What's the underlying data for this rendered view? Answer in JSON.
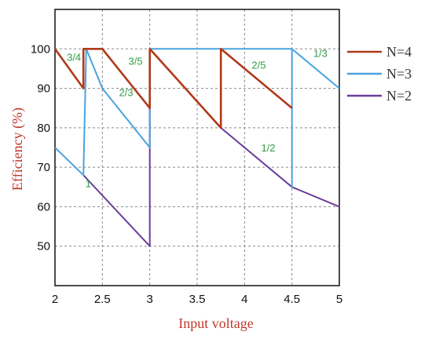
{
  "chart_data": {
    "type": "line",
    "title": "",
    "xlabel": "Input voltage",
    "ylabel": "Efficiency (%)",
    "xlim": [
      2,
      5
    ],
    "ylim": [
      40,
      110
    ],
    "xticks": [
      "2",
      "2.5",
      "3",
      "3.5",
      "4",
      "4.5",
      "5"
    ],
    "yticks": [
      "50",
      "60",
      "70",
      "80",
      "90",
      "100"
    ],
    "grid": true,
    "legend_placement": "right",
    "series": [
      {
        "name": "N=4",
        "color": "#b03a1a",
        "points": [
          [
            2,
            100
          ],
          [
            2.3,
            90
          ],
          [
            2.3,
            100
          ],
          [
            2.5,
            100
          ],
          [
            2.5,
            100
          ],
          [
            3,
            85
          ],
          [
            3,
            100
          ],
          [
            3.75,
            80
          ],
          [
            3.75,
            100
          ],
          [
            4.5,
            85
          ]
        ]
      },
      {
        "name": "N=3",
        "color": "#4aa3df",
        "points": [
          [
            2,
            75
          ],
          [
            2.3,
            68
          ],
          [
            2.33,
            100
          ],
          [
            2.5,
            90
          ],
          [
            3,
            75
          ],
          [
            3,
            100
          ],
          [
            4.5,
            100
          ],
          [
            4.5,
            65
          ],
          [
            4.5,
            100
          ],
          [
            5,
            90
          ]
        ]
      },
      {
        "name": "N=2",
        "color": "#6a3d9a",
        "points": [
          [
            2.3,
            68
          ],
          [
            3,
            50
          ],
          [
            3,
            100
          ],
          [
            3.75,
            80
          ],
          [
            4.5,
            65
          ],
          [
            5,
            60
          ]
        ]
      }
    ],
    "annotations": [
      {
        "text": "3/4",
        "x": 2.2,
        "y": 97
      },
      {
        "text": "3/5",
        "x": 2.85,
        "y": 96
      },
      {
        "text": "2/3",
        "x": 2.75,
        "y": 88
      },
      {
        "text": "2/5",
        "x": 4.15,
        "y": 95
      },
      {
        "text": "1/3",
        "x": 4.8,
        "y": 98
      },
      {
        "text": "1/2",
        "x": 4.25,
        "y": 74
      },
      {
        "text": "1",
        "x": 2.35,
        "y": 65
      }
    ]
  }
}
